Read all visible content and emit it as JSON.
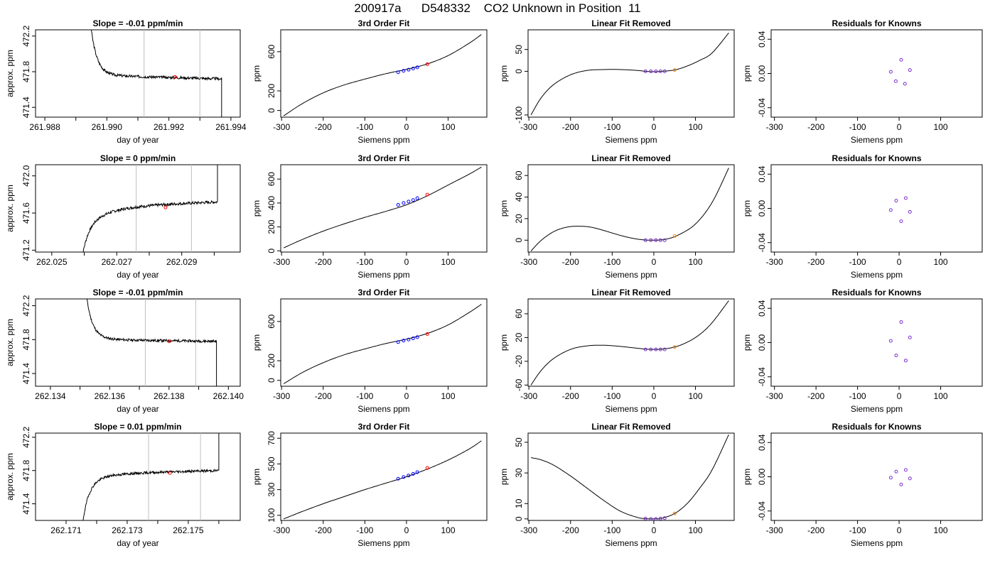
{
  "title": "200917a      D548332    CO2 Unknown in Position  11",
  "colors": {
    "known": "#0000ff",
    "unknown": "#ff0000",
    "resid": "#7b2fd0",
    "unk_resid": "#ff8000",
    "vline": "#bfbfbf",
    "line": "#000000"
  },
  "chart_data": [
    {
      "type": "line",
      "row": 0,
      "col": 0,
      "title": "Slope =  -0.01  ppm/min",
      "xlabel": "day of year",
      "ylabel": "approx. ppm",
      "xlim": [
        261.9877,
        261.9943
      ],
      "ylim": [
        471.29,
        472.27
      ],
      "xticks": [
        261.988,
        261.99,
        261.992,
        261.994
      ],
      "xtick_labels": [
        "261.988",
        "261.990",
        "261.992",
        "261.994"
      ],
      "minor_xticks": [
        261.989,
        261.991,
        261.993
      ],
      "yticks": [
        471.4,
        471.8,
        472.2
      ],
      "ytick_labels": [
        "471.4",
        "471.8",
        "472.2"
      ],
      "vlines": [
        261.9912,
        261.993
      ],
      "marker": [
        261.9922,
        471.74
      ],
      "trace": {
        "x0": 261.9894,
        "x1": 261.9937,
        "v0": 472.6,
        "decay": 471.77,
        "plateau": 471.76,
        "end": 471.72,
        "tail": 470.5,
        "tail_dir": "down",
        "seed": 3
      }
    },
    {
      "type": "line",
      "row": 0,
      "col": 1,
      "title": "3rd Order Fit",
      "xlabel": "Siemens ppm",
      "ylabel": "ppm",
      "xlim": [
        -302,
        193
      ],
      "ylim": [
        -68,
        823
      ],
      "xticks": [
        -300,
        -200,
        -100,
        0,
        100
      ],
      "xtick_labels": [
        "-300",
        "-200",
        "-100",
        "0",
        "100"
      ],
      "yticks": [
        0,
        200,
        600
      ],
      "ytick_labels": [
        "0",
        "200",
        "600"
      ],
      "curve_x": [
        -295,
        -250,
        -200,
        -150,
        -100,
        -50,
        0,
        50,
        100,
        150,
        180
      ],
      "curve_y": [
        -55,
        70,
        180,
        260,
        320,
        375,
        420,
        475,
        560,
        685,
        775
      ],
      "known_points": [
        [
          -20,
          390
        ],
        [
          -7,
          405
        ],
        [
          5,
          416
        ],
        [
          16,
          428
        ],
        [
          26,
          440
        ]
      ],
      "unknown_point": [
        50,
        472
      ]
    },
    {
      "type": "line",
      "row": 0,
      "col": 2,
      "title": "Linear Fit Removed",
      "xlabel": "Siemens ppm",
      "ylabel": "ppm",
      "xlim": [
        -302,
        193
      ],
      "ylim": [
        -105,
        95
      ],
      "xticks": [
        -300,
        -200,
        -100,
        0,
        100
      ],
      "xtick_labels": [
        "-300",
        "-200",
        "-100",
        "0",
        "100"
      ],
      "yticks": [
        -100,
        0,
        50
      ],
      "ytick_labels": [
        "-100",
        "0",
        "50"
      ],
      "curve_x": [
        -295,
        -270,
        -240,
        -200,
        -160,
        -120,
        -80,
        -40,
        -20,
        0,
        20,
        50,
        80,
        110,
        140,
        180
      ],
      "curve_y": [
        -100,
        -60,
        -30,
        -8,
        2,
        4,
        4,
        2,
        0,
        -1,
        0,
        3,
        12,
        25,
        42,
        88
      ],
      "known_points": [
        [
          -20,
          0
        ],
        [
          -7,
          0
        ],
        [
          5,
          0
        ],
        [
          16,
          0
        ],
        [
          26,
          0
        ]
      ],
      "unknown_point": [
        50,
        3
      ]
    },
    {
      "type": "scatter",
      "row": 0,
      "col": 3,
      "title": "Residuals for Knowns",
      "xlabel": "Siemens ppm",
      "ylabel": "ppm",
      "xlim": [
        -308,
        200
      ],
      "ylim": [
        -0.051,
        0.051
      ],
      "xticks": [
        -300,
        -200,
        -100,
        0,
        100
      ],
      "xtick_labels": [
        "-300",
        "-200",
        "-100",
        "0",
        "100"
      ],
      "yticks": [
        -0.04,
        0.0,
        0.04
      ],
      "ytick_labels": [
        "-0.04",
        "0.00",
        "0.04"
      ],
      "points": [
        [
          -20,
          0.002
        ],
        [
          -8,
          -0.009
        ],
        [
          5,
          0.016
        ],
        [
          14,
          -0.012
        ],
        [
          26,
          0.004
        ]
      ]
    },
    {
      "type": "line",
      "row": 1,
      "col": 0,
      "title": "Slope =  0  ppm/min",
      "xlabel": "day of year",
      "ylabel": "approx. ppm",
      "xlim": [
        262.0245,
        262.0308
      ],
      "ylim": [
        471.18,
        472.12
      ],
      "xticks": [
        262.025,
        262.027,
        262.029
      ],
      "xtick_labels": [
        "262.025",
        "262.027",
        "262.029"
      ],
      "minor_xticks": [
        262.026,
        262.028,
        262.03
      ],
      "yticks": [
        471.2,
        471.6,
        472.0
      ],
      "ytick_labels": [
        "471.2",
        "471.6",
        "472.0"
      ],
      "vlines": [
        262.0276,
        262.0293
      ],
      "marker": [
        262.0285,
        471.66
      ],
      "trace": {
        "x0": 262.0259,
        "x1": 262.0301,
        "v0": 471.05,
        "decay": 471.43,
        "plateau": 471.66,
        "end": 471.72,
        "tail": 472.5,
        "tail_dir": "up",
        "seed": 7
      }
    },
    {
      "type": "line",
      "row": 1,
      "col": 1,
      "title": "3rd Order Fit",
      "xlabel": "Siemens ppm",
      "ylabel": "ppm",
      "xlim": [
        -302,
        193
      ],
      "ylim": [
        -10,
        720
      ],
      "xticks": [
        -300,
        -200,
        -100,
        0,
        100
      ],
      "xtick_labels": [
        "-300",
        "-200",
        "-100",
        "0",
        "100"
      ],
      "yticks": [
        0,
        200,
        400,
        600
      ],
      "ytick_labels": [
        "0",
        "200",
        "400",
        "600"
      ],
      "curve_x": [
        -295,
        -250,
        -200,
        -150,
        -100,
        -50,
        0,
        50,
        100,
        150,
        180
      ],
      "curve_y": [
        25,
        95,
        165,
        225,
        280,
        330,
        385,
        460,
        550,
        640,
        700
      ],
      "known_points": [
        [
          -20,
          385
        ],
        [
          -7,
          400
        ],
        [
          5,
          412
        ],
        [
          16,
          425
        ],
        [
          26,
          440
        ]
      ],
      "unknown_point": [
        50,
        470
      ]
    },
    {
      "type": "line",
      "row": 1,
      "col": 2,
      "title": "Linear Fit Removed",
      "xlabel": "Siemens ppm",
      "ylabel": "ppm",
      "xlim": [
        -302,
        193
      ],
      "ylim": [
        -11,
        70
      ],
      "xticks": [
        -300,
        -200,
        -100,
        0,
        100
      ],
      "xtick_labels": [
        "-300",
        "-200",
        "-100",
        "0",
        "100"
      ],
      "yticks": [
        0,
        20,
        40,
        60
      ],
      "ytick_labels": [
        "0",
        "20",
        "40",
        "60"
      ],
      "curve_x": [
        -295,
        -270,
        -240,
        -210,
        -180,
        -150,
        -120,
        -90,
        -60,
        -30,
        0,
        30,
        60,
        100,
        140,
        180
      ],
      "curve_y": [
        -10,
        0,
        8,
        12,
        13,
        12,
        9,
        5.5,
        2.5,
        0.5,
        0,
        1,
        5,
        15,
        35,
        67
      ],
      "known_points": [
        [
          -20,
          0
        ],
        [
          -7,
          0
        ],
        [
          5,
          0
        ],
        [
          16,
          0
        ],
        [
          26,
          0
        ]
      ],
      "unknown_point": [
        50,
        4
      ]
    },
    {
      "type": "scatter",
      "row": 1,
      "col": 3,
      "title": "Residuals for Knowns",
      "xlabel": "Siemens ppm",
      "ylabel": "ppm",
      "xlim": [
        -308,
        200
      ],
      "ylim": [
        -0.051,
        0.051
      ],
      "xticks": [
        -300,
        -200,
        -100,
        0,
        100
      ],
      "xtick_labels": [
        "-300",
        "-200",
        "-100",
        "0",
        "100"
      ],
      "yticks": [
        -0.04,
        0.0,
        0.04
      ],
      "ytick_labels": [
        "-0.04",
        "0.00",
        "0.04"
      ],
      "points": [
        [
          -20,
          -0.002
        ],
        [
          -7,
          0.009
        ],
        [
          5,
          -0.015
        ],
        [
          16,
          0.012
        ],
        [
          26,
          -0.004
        ]
      ]
    },
    {
      "type": "line",
      "row": 2,
      "col": 0,
      "title": "Slope =  -0.01  ppm/min",
      "xlabel": "day of year",
      "ylabel": "approx. ppm",
      "xlim": [
        262.1335,
        262.1404
      ],
      "ylim": [
        471.25,
        472.28
      ],
      "xticks": [
        262.134,
        262.136,
        262.138,
        262.14
      ],
      "xtick_labels": [
        "262.134",
        "262.136",
        "262.138",
        "262.140"
      ],
      "minor_xticks": [
        262.135,
        262.137,
        262.139
      ],
      "yticks": [
        471.4,
        471.8,
        472.2
      ],
      "ytick_labels": [
        "471.4",
        "471.8",
        "472.2"
      ],
      "vlines": [
        262.1372,
        262.1389
      ],
      "marker": [
        262.138,
        471.78
      ],
      "trace": {
        "x0": 262.1351,
        "x1": 262.1396,
        "v0": 472.7,
        "decay": 471.82,
        "plateau": 471.8,
        "end": 471.78,
        "tail": 470.5,
        "tail_dir": "down",
        "seed": 11
      }
    },
    {
      "type": "line",
      "row": 2,
      "col": 1,
      "title": "3rd Order Fit",
      "xlabel": "Siemens ppm",
      "ylabel": "ppm",
      "xlim": [
        -302,
        193
      ],
      "ylim": [
        -60,
        830
      ],
      "xticks": [
        -300,
        -200,
        -100,
        0,
        100
      ],
      "xtick_labels": [
        "-300",
        "-200",
        "-100",
        "0",
        "100"
      ],
      "yticks": [
        0,
        200,
        600
      ],
      "ytick_labels": [
        "0",
        "200",
        "600"
      ],
      "curve_x": [
        -295,
        -250,
        -200,
        -150,
        -100,
        -50,
        0,
        50,
        100,
        150,
        180
      ],
      "curve_y": [
        -35,
        80,
        180,
        260,
        320,
        375,
        420,
        478,
        565,
        690,
        775
      ],
      "known_points": [
        [
          -20,
          390
        ],
        [
          -7,
          405
        ],
        [
          5,
          416
        ],
        [
          16,
          428
        ],
        [
          26,
          440
        ]
      ],
      "unknown_point": [
        50,
        472
      ]
    },
    {
      "type": "line",
      "row": 2,
      "col": 2,
      "title": "Linear Fit Removed",
      "xlabel": "Siemens ppm",
      "ylabel": "ppm",
      "xlim": [
        -302,
        193
      ],
      "ylim": [
        -62,
        85
      ],
      "xticks": [
        -300,
        -200,
        -100,
        0,
        100
      ],
      "xtick_labels": [
        "-300",
        "-200",
        "-100",
        "0",
        "100"
      ],
      "yticks": [
        -60,
        -20,
        20,
        60
      ],
      "ytick_labels": [
        "-60",
        "-20",
        "20",
        "60"
      ],
      "curve_x": [
        -295,
        -270,
        -240,
        -200,
        -160,
        -120,
        -80,
        -40,
        -20,
        0,
        20,
        50,
        80,
        110,
        140,
        180
      ],
      "curve_y": [
        -60,
        -35,
        -15,
        0,
        6,
        7,
        5,
        2,
        0.5,
        0,
        0.5,
        4,
        12,
        25,
        45,
        82
      ],
      "known_points": [
        [
          -20,
          0
        ],
        [
          -7,
          0
        ],
        [
          5,
          0
        ],
        [
          16,
          0
        ],
        [
          26,
          0
        ]
      ],
      "unknown_point": [
        50,
        4
      ]
    },
    {
      "type": "scatter",
      "row": 2,
      "col": 3,
      "title": "Residuals for Knowns",
      "xlabel": "Siemens ppm",
      "ylabel": "ppm",
      "xlim": [
        -308,
        200
      ],
      "ylim": [
        -0.051,
        0.051
      ],
      "xticks": [
        -300,
        -200,
        -100,
        0,
        100
      ],
      "xtick_labels": [
        "-300",
        "-200",
        "-100",
        "0",
        "100"
      ],
      "yticks": [
        -0.04,
        0.0,
        0.04
      ],
      "ytick_labels": [
        "-0.04",
        "0.00",
        "0.04"
      ],
      "points": [
        [
          -20,
          0.002
        ],
        [
          -7,
          -0.015
        ],
        [
          5,
          0.024
        ],
        [
          16,
          -0.021
        ],
        [
          26,
          0.006
        ]
      ]
    },
    {
      "type": "line",
      "row": 3,
      "col": 0,
      "title": "Slope =  0.01  ppm/min",
      "xlabel": "day of year",
      "ylabel": "approx. ppm",
      "xlim": [
        262.17,
        262.1767
      ],
      "ylim": [
        471.2,
        472.25
      ],
      "xticks": [
        262.171,
        262.173,
        262.175
      ],
      "xtick_labels": [
        "262.171",
        "262.173",
        "262.175"
      ],
      "minor_xticks": [
        262.172,
        262.174,
        262.176
      ],
      "yticks": [
        471.4,
        471.8,
        472.2
      ],
      "ytick_labels": [
        "471.4",
        "471.8",
        "472.2"
      ],
      "vlines": [
        262.1737,
        262.1754
      ],
      "marker": [
        262.1744,
        471.77
      ],
      "trace": {
        "x0": 262.1715,
        "x1": 262.176,
        "v0": 471.05,
        "decay": 471.66,
        "plateau": 471.76,
        "end": 471.8,
        "tail": 472.6,
        "tail_dir": "up",
        "seed": 19
      }
    },
    {
      "type": "line",
      "row": 3,
      "col": 1,
      "title": "3rd Order Fit",
      "xlabel": "Siemens ppm",
      "ylabel": "ppm",
      "xlim": [
        -302,
        193
      ],
      "ylim": [
        60,
        740
      ],
      "xticks": [
        -300,
        -200,
        -100,
        0,
        100
      ],
      "xtick_labels": [
        "-300",
        "-200",
        "-100",
        "0",
        "100"
      ],
      "yticks": [
        100,
        300,
        500,
        700
      ],
      "ytick_labels": [
        "100",
        "300",
        "500",
        "700"
      ],
      "curve_x": [
        -295,
        -250,
        -200,
        -150,
        -100,
        -50,
        0,
        50,
        100,
        150,
        180
      ],
      "curve_y": [
        72,
        130,
        190,
        245,
        300,
        350,
        400,
        460,
        530,
        615,
        680
      ],
      "known_points": [
        [
          -20,
          385
        ],
        [
          -7,
          398
        ],
        [
          5,
          410
        ],
        [
          16,
          423
        ],
        [
          26,
          436
        ]
      ],
      "unknown_point": [
        50,
        468
      ]
    },
    {
      "type": "line",
      "row": 3,
      "col": 2,
      "title": "Linear Fit Removed",
      "xlabel": "Siemens ppm",
      "ylabel": "ppm",
      "xlim": [
        -302,
        193
      ],
      "ylim": [
        -1,
        56
      ],
      "xticks": [
        -300,
        -200,
        -100,
        0,
        100
      ],
      "xtick_labels": [
        "-300",
        "-200",
        "-100",
        "0",
        "100"
      ],
      "yticks": [
        0,
        10,
        30,
        50
      ],
      "ytick_labels": [
        "0",
        "10",
        "30",
        "50"
      ],
      "curve_x": [
        -295,
        -270,
        -240,
        -200,
        -160,
        -120,
        -80,
        -40,
        -20,
        0,
        20,
        50,
        80,
        110,
        140,
        180
      ],
      "curve_y": [
        40,
        38.5,
        35,
        28,
        20,
        12,
        5,
        1,
        0.2,
        0,
        0.5,
        3.5,
        10,
        20,
        32,
        55
      ],
      "known_points": [
        [
          -20,
          0.2
        ],
        [
          -7,
          0
        ],
        [
          5,
          0
        ],
        [
          16,
          0.2
        ],
        [
          26,
          0.5
        ]
      ],
      "unknown_point": [
        50,
        3.5
      ]
    },
    {
      "type": "scatter",
      "row": 3,
      "col": 3,
      "title": "Residuals for Knowns",
      "xlabel": "Siemens ppm",
      "ylabel": "ppm",
      "xlim": [
        -308,
        200
      ],
      "ylim": [
        -0.051,
        0.051
      ],
      "xticks": [
        -300,
        -200,
        -100,
        0,
        100
      ],
      "xtick_labels": [
        "-300",
        "-200",
        "-100",
        "0",
        "100"
      ],
      "yticks": [
        -0.04,
        0.0,
        0.04
      ],
      "ytick_labels": [
        "-0.04",
        "0.00",
        "0.04"
      ],
      "points": [
        [
          -20,
          -0.001
        ],
        [
          -7,
          0.006
        ],
        [
          5,
          -0.009
        ],
        [
          16,
          0.008
        ],
        [
          26,
          -0.002
        ]
      ]
    }
  ]
}
